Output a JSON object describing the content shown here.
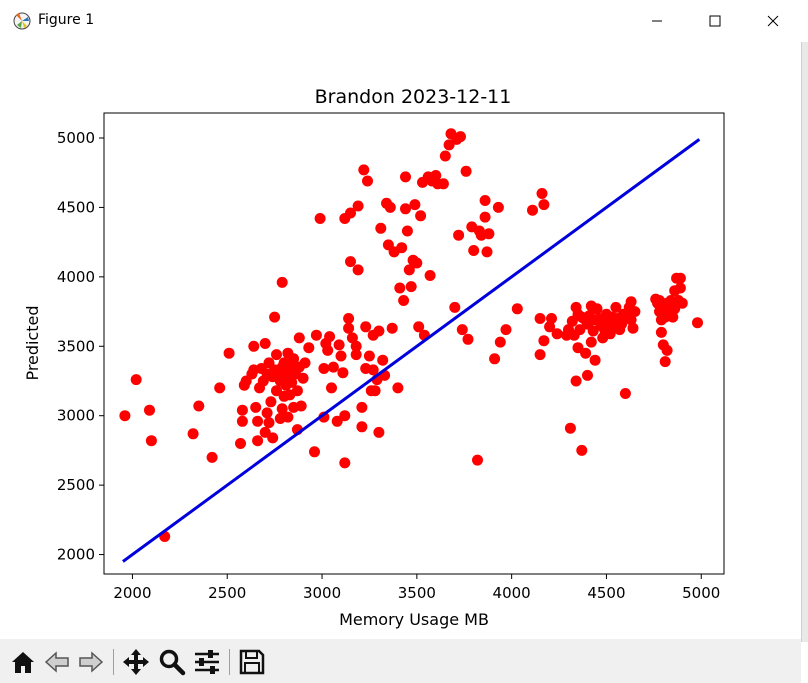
{
  "window": {
    "title": "Figure 1",
    "icons": {
      "app": "matplotlib-figure-icon",
      "minimize": "minimize-icon",
      "maximize": "maximize-icon",
      "close": "close-icon"
    }
  },
  "toolbar": {
    "buttons": [
      {
        "name": "home",
        "icon": "home-icon"
      },
      {
        "name": "back",
        "icon": "back-arrow-icon"
      },
      {
        "name": "forward",
        "icon": "forward-arrow-icon"
      },
      {
        "name": "pan",
        "icon": "move-icon"
      },
      {
        "name": "zoom",
        "icon": "magnifier-icon"
      },
      {
        "name": "configure-subplots",
        "icon": "sliders-icon"
      },
      {
        "name": "save",
        "icon": "floppy-disk-icon"
      }
    ]
  },
  "chart_data": {
    "type": "scatter",
    "title": "Brandon 2023-12-11",
    "xlabel": "Memory Usage MB",
    "ylabel": "Predicted",
    "xlim": [
      1850,
      5120
    ],
    "ylim": [
      1860,
      5180
    ],
    "xticks": [
      2000,
      2500,
      3000,
      3500,
      4000,
      4500,
      5000
    ],
    "yticks": [
      2000,
      2500,
      3000,
      3500,
      4000,
      4500,
      5000
    ],
    "grid": false,
    "colors": {
      "points": "#ff0000",
      "line": "#0000dd"
    },
    "series": [
      {
        "type": "scatter",
        "points": [
          [
            1960,
            3000
          ],
          [
            2020,
            3260
          ],
          [
            2090,
            3040
          ],
          [
            2100,
            2820
          ],
          [
            2170,
            2130
          ],
          [
            2320,
            2870
          ],
          [
            2350,
            3070
          ],
          [
            2420,
            2700
          ],
          [
            2460,
            3200
          ],
          [
            2510,
            3450
          ],
          [
            2570,
            2800
          ],
          [
            2580,
            3040
          ],
          [
            2580,
            2960
          ],
          [
            2590,
            3220
          ],
          [
            2600,
            3250
          ],
          [
            2630,
            3300
          ],
          [
            2640,
            3330
          ],
          [
            2640,
            3500
          ],
          [
            2650,
            3060
          ],
          [
            2660,
            2820
          ],
          [
            2660,
            2960
          ],
          [
            2670,
            3200
          ],
          [
            2680,
            3340
          ],
          [
            2690,
            3250
          ],
          [
            2700,
            3520
          ],
          [
            2700,
            2880
          ],
          [
            2710,
            3300
          ],
          [
            2710,
            3020
          ],
          [
            2720,
            2950
          ],
          [
            2720,
            3380
          ],
          [
            2730,
            3100
          ],
          [
            2740,
            2840
          ],
          [
            2740,
            3280
          ],
          [
            2750,
            3330
          ],
          [
            2750,
            3710
          ],
          [
            2760,
            3180
          ],
          [
            2760,
            3440
          ],
          [
            2770,
            3300
          ],
          [
            2780,
            2980
          ],
          [
            2780,
            3250
          ],
          [
            2790,
            3960
          ],
          [
            2790,
            3350
          ],
          [
            2790,
            3050
          ],
          [
            2800,
            3380
          ],
          [
            2800,
            3140
          ],
          [
            2810,
            3220
          ],
          [
            2810,
            3290
          ],
          [
            2820,
            3450
          ],
          [
            2820,
            2990
          ],
          [
            2830,
            3370
          ],
          [
            2830,
            3150
          ],
          [
            2840,
            3320
          ],
          [
            2840,
            3240
          ],
          [
            2850,
            3410
          ],
          [
            2850,
            3060
          ],
          [
            2860,
            3300
          ],
          [
            2870,
            2900
          ],
          [
            2870,
            3180
          ],
          [
            2880,
            3560
          ],
          [
            2880,
            3350
          ],
          [
            2890,
            3070
          ],
          [
            2900,
            3270
          ],
          [
            2910,
            3380
          ],
          [
            2930,
            3490
          ],
          [
            2960,
            2740
          ],
          [
            2970,
            3580
          ],
          [
            2990,
            4420
          ],
          [
            3010,
            2990
          ],
          [
            3010,
            3340
          ],
          [
            3020,
            3520
          ],
          [
            3030,
            3470
          ],
          [
            3040,
            3570
          ],
          [
            3050,
            3200
          ],
          [
            3060,
            3350
          ],
          [
            3080,
            2960
          ],
          [
            3090,
            3510
          ],
          [
            3100,
            3430
          ],
          [
            3110,
            3310
          ],
          [
            3120,
            3000
          ],
          [
            3120,
            2660
          ],
          [
            3120,
            4420
          ],
          [
            3140,
            3630
          ],
          [
            3140,
            3700
          ],
          [
            3150,
            4460
          ],
          [
            3150,
            4110
          ],
          [
            3160,
            3560
          ],
          [
            3180,
            3440
          ],
          [
            3180,
            3500
          ],
          [
            3190,
            4510
          ],
          [
            3190,
            4050
          ],
          [
            3210,
            3060
          ],
          [
            3210,
            2920
          ],
          [
            3220,
            4770
          ],
          [
            3230,
            3340
          ],
          [
            3230,
            3640
          ],
          [
            3240,
            4690
          ],
          [
            3250,
            3430
          ],
          [
            3260,
            3180
          ],
          [
            3270,
            3330
          ],
          [
            3270,
            3580
          ],
          [
            3280,
            3180
          ],
          [
            3290,
            3260
          ],
          [
            3300,
            3610
          ],
          [
            3300,
            2880
          ],
          [
            3310,
            4350
          ],
          [
            3320,
            3400
          ],
          [
            3330,
            3290
          ],
          [
            3340,
            4530
          ],
          [
            3350,
            4230
          ],
          [
            3360,
            4500
          ],
          [
            3370,
            3630
          ],
          [
            3380,
            4180
          ],
          [
            3400,
            3200
          ],
          [
            3410,
            3920
          ],
          [
            3420,
            4210
          ],
          [
            3430,
            3830
          ],
          [
            3440,
            4720
          ],
          [
            3440,
            4490
          ],
          [
            3450,
            4330
          ],
          [
            3460,
            4050
          ],
          [
            3470,
            3930
          ],
          [
            3480,
            4120
          ],
          [
            3490,
            4520
          ],
          [
            3500,
            4100
          ],
          [
            3510,
            3640
          ],
          [
            3520,
            4440
          ],
          [
            3530,
            4680
          ],
          [
            3540,
            3580
          ],
          [
            3560,
            4720
          ],
          [
            3570,
            4010
          ],
          [
            3580,
            4690
          ],
          [
            3600,
            4730
          ],
          [
            3610,
            4670
          ],
          [
            3640,
            4670
          ],
          [
            3650,
            4870
          ],
          [
            3670,
            4950
          ],
          [
            3680,
            5030
          ],
          [
            3700,
            3780
          ],
          [
            3710,
            4990
          ],
          [
            3720,
            4300
          ],
          [
            3730,
            5010
          ],
          [
            3740,
            3620
          ],
          [
            3760,
            4760
          ],
          [
            3770,
            3550
          ],
          [
            3790,
            4360
          ],
          [
            3800,
            4190
          ],
          [
            3820,
            2680
          ],
          [
            3830,
            4330
          ],
          [
            3840,
            4300
          ],
          [
            3860,
            4430
          ],
          [
            3860,
            4550
          ],
          [
            3870,
            4180
          ],
          [
            3880,
            4310
          ],
          [
            3910,
            3410
          ],
          [
            3930,
            4500
          ],
          [
            3940,
            3530
          ],
          [
            3970,
            3620
          ],
          [
            4030,
            3770
          ],
          [
            4110,
            4480
          ],
          [
            4150,
            3700
          ],
          [
            4150,
            3440
          ],
          [
            4160,
            4600
          ],
          [
            4170,
            3540
          ],
          [
            4170,
            4520
          ],
          [
            4200,
            3640
          ],
          [
            4210,
            3700
          ],
          [
            4240,
            3590
          ],
          [
            4290,
            3580
          ],
          [
            4300,
            3620
          ],
          [
            4310,
            2910
          ],
          [
            4320,
            3680
          ],
          [
            4330,
            3580
          ],
          [
            4340,
            3780
          ],
          [
            4340,
            3250
          ],
          [
            4350,
            3730
          ],
          [
            4350,
            3490
          ],
          [
            4360,
            3620
          ],
          [
            4370,
            3710
          ],
          [
            4370,
            2750
          ],
          [
            4380,
            3700
          ],
          [
            4390,
            3450
          ],
          [
            4400,
            3660
          ],
          [
            4400,
            3290
          ],
          [
            4410,
            3720
          ],
          [
            4420,
            3790
          ],
          [
            4420,
            3530
          ],
          [
            4430,
            3690
          ],
          [
            4430,
            3610
          ],
          [
            4440,
            3400
          ],
          [
            4450,
            3770
          ],
          [
            4460,
            3700
          ],
          [
            4470,
            3650
          ],
          [
            4480,
            3560
          ],
          [
            4490,
            3620
          ],
          [
            4500,
            3730
          ],
          [
            4510,
            3680
          ],
          [
            4520,
            3590
          ],
          [
            4530,
            3710
          ],
          [
            4540,
            3640
          ],
          [
            4550,
            3780
          ],
          [
            4560,
            3700
          ],
          [
            4570,
            3620
          ],
          [
            4580,
            3660
          ],
          [
            4590,
            3730
          ],
          [
            4600,
            3160
          ],
          [
            4610,
            3720
          ],
          [
            4620,
            3780
          ],
          [
            4630,
            3690
          ],
          [
            4630,
            3820
          ],
          [
            4640,
            3630
          ],
          [
            4650,
            3750
          ],
          [
            4760,
            3840
          ],
          [
            4770,
            3810
          ],
          [
            4780,
            3830
          ],
          [
            4780,
            3750
          ],
          [
            4790,
            3600
          ],
          [
            4790,
            3690
          ],
          [
            4800,
            3800
          ],
          [
            4800,
            3510
          ],
          [
            4810,
            3710
          ],
          [
            4810,
            3390
          ],
          [
            4820,
            3810
          ],
          [
            4820,
            3470
          ],
          [
            4830,
            3760
          ],
          [
            4840,
            3750
          ],
          [
            4840,
            3830
          ],
          [
            4850,
            3710
          ],
          [
            4860,
            3900
          ],
          [
            4860,
            3770
          ],
          [
            4870,
            3990
          ],
          [
            4880,
            3830
          ],
          [
            4890,
            3990
          ],
          [
            4890,
            3920
          ],
          [
            4900,
            3810
          ],
          [
            4980,
            3670
          ]
        ]
      },
      {
        "type": "line",
        "x": [
          1950,
          4990
        ],
        "y": [
          1950,
          4990
        ]
      }
    ]
  }
}
